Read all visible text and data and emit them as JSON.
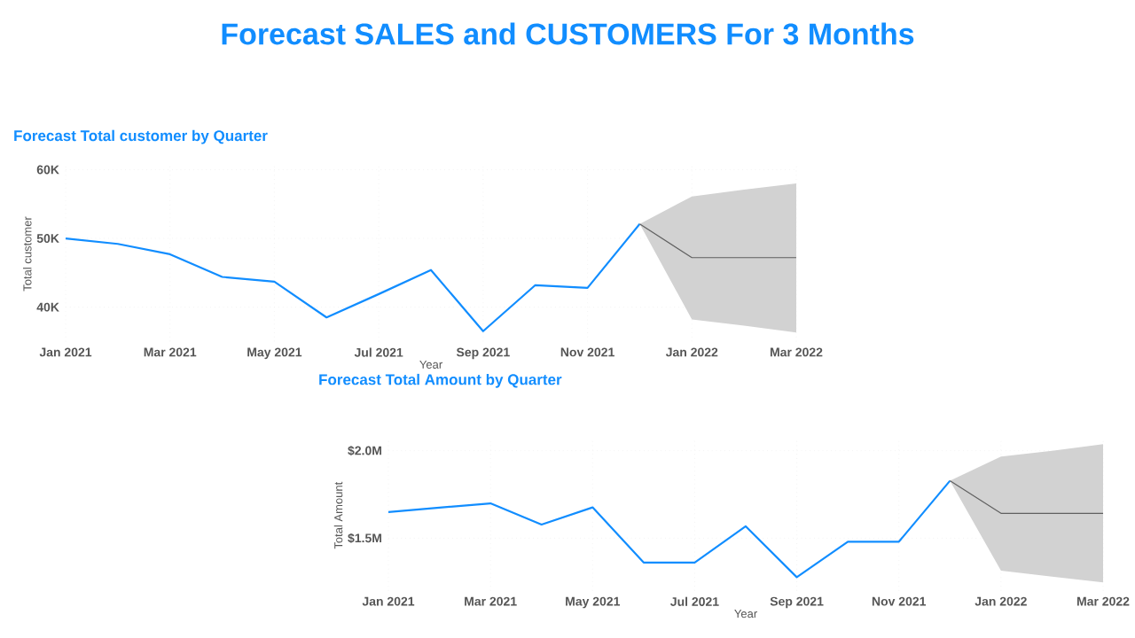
{
  "chart_data": [
    {
      "type": "other",
      "title": "Forecast SALES and CUSTOMERS For 3 Months"
    },
    {
      "type": "line",
      "title": "Forecast Total customer by Quarter",
      "xlabel": "Year",
      "ylabel": "Total customer",
      "xlim": [
        "2021-01",
        "2022-03"
      ],
      "ylim": [
        35000,
        60500
      ],
      "xticks": [
        {
          "value": "2021-01",
          "label": "Jan 2021"
        },
        {
          "value": "2021-03",
          "label": "Mar 2021"
        },
        {
          "value": "2021-05",
          "label": "May 2021"
        },
        {
          "value": "2021-07",
          "label": "Jul 2021"
        },
        {
          "value": "2021-09",
          "label": "Sep 2021"
        },
        {
          "value": "2021-11",
          "label": "Nov 2021"
        },
        {
          "value": "2022-01",
          "label": "Jan 2022"
        },
        {
          "value": "2022-03",
          "label": "Mar 2022"
        }
      ],
      "yticks": [
        {
          "value": 40000,
          "label": "40K"
        },
        {
          "value": 50000,
          "label": "50K"
        },
        {
          "value": 60000,
          "label": "60K"
        }
      ],
      "grid": true,
      "series": [
        {
          "color": "#118dff",
          "x": [
            "2021-01",
            "2021-02",
            "2021-03",
            "2021-04",
            "2021-05",
            "2021-06",
            "2021-07",
            "2021-08",
            "2021-09",
            "2021-10",
            "2021-11",
            "2021-12"
          ],
          "values": [
            50000,
            49200,
            47700,
            44400,
            43700,
            38500,
            41900,
            45400,
            36500,
            43200,
            42800,
            52100
          ]
        },
        {
          "color": "#606060",
          "x": [
            "2021-12",
            "2022-01",
            "2022-02",
            "2022-03"
          ],
          "values": [
            52100,
            47200,
            47200,
            47200
          ],
          "lower": [
            52100,
            38200,
            37300,
            36300
          ],
          "upper": [
            52100,
            56100,
            57100,
            58000
          ]
        }
      ]
    },
    {
      "type": "line",
      "title": "Forecast Total Amount by Quarter",
      "xlabel": "Year",
      "ylabel": "Total Amount",
      "xlim": [
        "2021-01",
        "2022-03"
      ],
      "ylim": [
        1200000,
        2060000
      ],
      "xticks": [
        {
          "value": "2021-01",
          "label": "Jan 2021"
        },
        {
          "value": "2021-03",
          "label": "Mar 2021"
        },
        {
          "value": "2021-05",
          "label": "May 2021"
        },
        {
          "value": "2021-07",
          "label": "Jul 2021"
        },
        {
          "value": "2021-09",
          "label": "Sep 2021"
        },
        {
          "value": "2021-11",
          "label": "Nov 2021"
        },
        {
          "value": "2022-01",
          "label": "Jan 2022"
        },
        {
          "value": "2022-03",
          "label": "Mar 2022"
        }
      ],
      "yticks": [
        {
          "value": 1500000,
          "label": "$1.5M"
        },
        {
          "value": 2000000,
          "label": "$2.0M"
        }
      ],
      "grid": true,
      "series": [
        {
          "color": "#118dff",
          "x": [
            "2021-01",
            "2021-02",
            "2021-03",
            "2021-04",
            "2021-05",
            "2021-06",
            "2021-07",
            "2021-08",
            "2021-09",
            "2021-10",
            "2021-11",
            "2021-12"
          ],
          "values": [
            1649000,
            1675000,
            1699000,
            1578000,
            1676000,
            1361000,
            1361000,
            1568000,
            1277000,
            1480000,
            1480000,
            1828000
          ]
        },
        {
          "color": "#606060",
          "x": [
            "2021-12",
            "2022-01",
            "2022-02",
            "2022-03"
          ],
          "values": [
            1828000,
            1642000,
            1642000,
            1642000
          ],
          "lower": [
            1828000,
            1314000,
            1280000,
            1247000
          ],
          "upper": [
            1828000,
            1966000,
            2000000,
            2037000
          ]
        }
      ]
    }
  ]
}
